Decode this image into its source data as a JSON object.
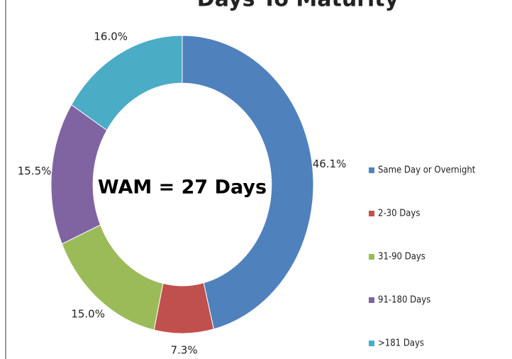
{
  "chart_data": {
    "type": "donut",
    "title": "Days To Maturity",
    "annotation": "WAM = 27 Days",
    "categories": [
      "Same Day or Overnight",
      "2-30 Days",
      "31-90 Days",
      "91-180 Days",
      ">181 Days"
    ],
    "values": [
      46.1,
      7.3,
      15.0,
      15.5,
      16.0
    ],
    "value_labels": [
      "46.1%",
      "7.3%",
      "15.0%",
      "15.5%",
      "16.0%"
    ],
    "colors": [
      "#4f81bd",
      "#c0504d",
      "#9bbb59",
      "#8064a2",
      "#4bacc6"
    ],
    "legend": "right"
  }
}
